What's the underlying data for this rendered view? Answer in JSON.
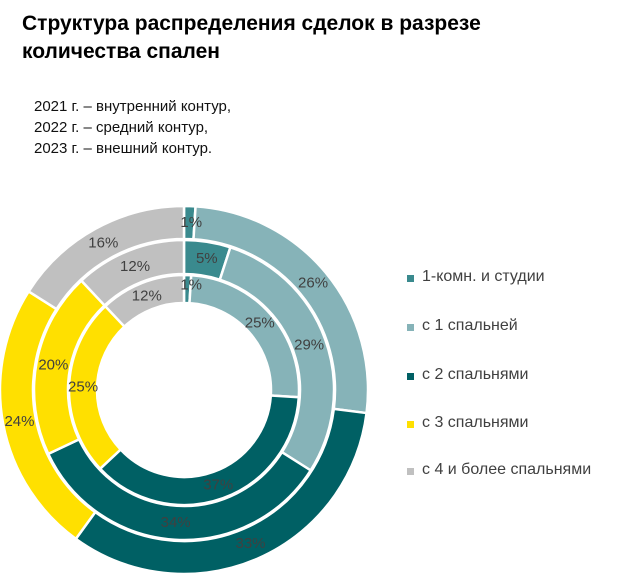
{
  "chart_data": {
    "type": "donut",
    "title": "Структура распределения сделок в разрезе количества спален",
    "subtitle_lines": [
      "2021 г. – внутренний контур,",
      "2022 г. – средний контур,",
      "2023 г. – внешний контур."
    ],
    "categories": [
      "1-комн. и студии",
      "с 1 спальней",
      "с 2 спальнями",
      "с 3 спальнями",
      "с 4 и более спальнями"
    ],
    "colors": [
      "#3a8a8e",
      "#86b3b8",
      "#006064",
      "#ffe000",
      "#c0c0c0"
    ],
    "series": [
      {
        "name": "2021",
        "ring": "inner",
        "values": [
          1,
          25,
          37,
          25,
          12
        ],
        "labels": [
          "1%",
          "25%",
          "37%",
          "25%",
          "12%"
        ]
      },
      {
        "name": "2022",
        "ring": "middle",
        "values": [
          5,
          29,
          34,
          20,
          12
        ],
        "labels": [
          "5%",
          "29%",
          "34%",
          "20%",
          "12%"
        ]
      },
      {
        "name": "2023",
        "ring": "outer",
        "values": [
          1,
          26,
          33,
          24,
          16
        ],
        "labels": [
          "1%",
          "26%",
          "33%",
          "24%",
          "16%"
        ]
      }
    ],
    "legend_position": "right"
  }
}
